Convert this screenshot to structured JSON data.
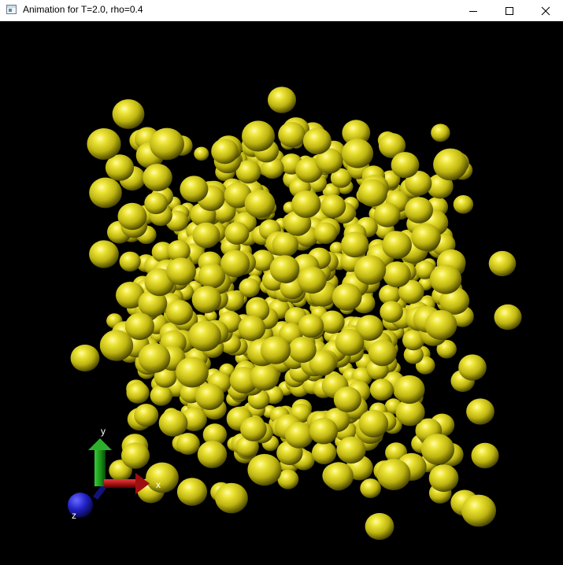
{
  "window": {
    "title": "Animation for T=2.0, rho=0.4",
    "icon": "app-window-icon"
  },
  "controls": {
    "minimize": "minimize-icon",
    "maximize": "maximize-icon",
    "close": "close-icon"
  },
  "scene": {
    "background": "#000000",
    "particle_color": "#d9d21a",
    "axes": {
      "x": {
        "label": "x",
        "color": "#c41818"
      },
      "y": {
        "label": "y",
        "color": "#1e9a1e"
      },
      "z": {
        "label": "z",
        "color": "#2222c8"
      }
    }
  }
}
